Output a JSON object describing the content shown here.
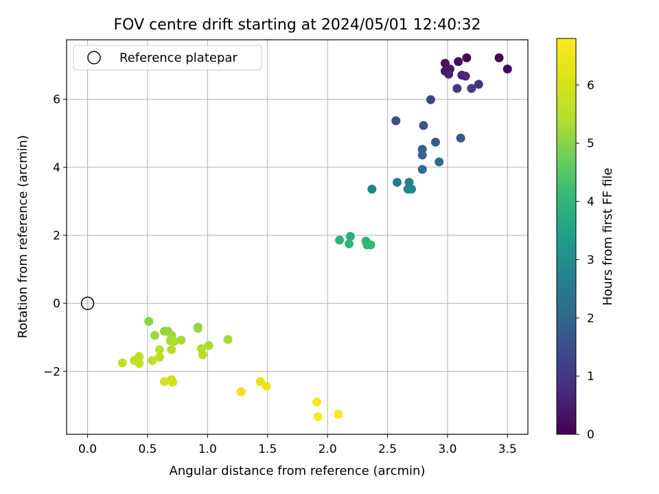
{
  "chart_data": {
    "type": "scatter",
    "title": "FOV centre drift starting at 2024/05/01 12:40:32",
    "xlabel": "Angular distance from reference (arcmin)",
    "ylabel": "Rotation from reference (arcmin)",
    "xlim": [
      -0.175,
      3.67
    ],
    "ylim": [
      -3.85,
      7.75
    ],
    "xticks": [
      0.0,
      0.5,
      1.0,
      1.5,
      2.0,
      2.5,
      3.0,
      3.5
    ],
    "xtick_labels": [
      "0.0",
      "0.5",
      "1.0",
      "1.5",
      "2.0",
      "2.5",
      "3.0",
      "3.5"
    ],
    "yticks": [
      -2,
      0,
      2,
      4,
      6
    ],
    "ytick_labels": [
      "−2",
      "0",
      "2",
      "4",
      "6"
    ],
    "grid": true,
    "legend": {
      "position": "top-left",
      "entries": [
        "Reference platepar"
      ]
    },
    "reference_point": {
      "x": 0.0,
      "y": 0.0,
      "label": "Reference platepar"
    },
    "colorbar": {
      "label": "Hours from first FF file",
      "colormap": "viridis",
      "range": [
        0,
        6.8
      ],
      "ticks": [
        0,
        1,
        2,
        3,
        4,
        5,
        6
      ],
      "tick_labels": [
        "0",
        "1",
        "2",
        "3",
        "4",
        "5",
        "6"
      ]
    },
    "points": [
      {
        "x": 3.43,
        "y": 7.22,
        "c": 0.05
      },
      {
        "x": 3.16,
        "y": 7.22,
        "c": 0.1
      },
      {
        "x": 3.5,
        "y": 6.89,
        "c": 0.15
      },
      {
        "x": 3.09,
        "y": 7.11,
        "c": 0.2
      },
      {
        "x": 2.98,
        "y": 7.06,
        "c": 0.3
      },
      {
        "x": 2.98,
        "y": 6.83,
        "c": 0.4
      },
      {
        "x": 3.02,
        "y": 6.89,
        "c": 0.45
      },
      {
        "x": 3.01,
        "y": 6.74,
        "c": 0.55
      },
      {
        "x": 3.12,
        "y": 6.71,
        "c": 0.6
      },
      {
        "x": 3.15,
        "y": 6.68,
        "c": 0.75
      },
      {
        "x": 3.26,
        "y": 6.44,
        "c": 0.95
      },
      {
        "x": 3.08,
        "y": 6.32,
        "c": 1.0
      },
      {
        "x": 3.2,
        "y": 6.32,
        "c": 1.1
      },
      {
        "x": 2.86,
        "y": 5.99,
        "c": 1.3
      },
      {
        "x": 2.57,
        "y": 5.37,
        "c": 1.55
      },
      {
        "x": 2.8,
        "y": 5.23,
        "c": 1.6
      },
      {
        "x": 3.11,
        "y": 4.86,
        "c": 1.7
      },
      {
        "x": 2.9,
        "y": 4.74,
        "c": 1.8
      },
      {
        "x": 2.79,
        "y": 4.53,
        "c": 1.9
      },
      {
        "x": 2.79,
        "y": 4.36,
        "c": 2.0
      },
      {
        "x": 2.93,
        "y": 4.16,
        "c": 2.1
      },
      {
        "x": 2.79,
        "y": 3.94,
        "c": 2.2
      },
      {
        "x": 2.58,
        "y": 3.56,
        "c": 2.5
      },
      {
        "x": 2.68,
        "y": 3.56,
        "c": 2.6
      },
      {
        "x": 2.37,
        "y": 3.36,
        "c": 2.7
      },
      {
        "x": 2.67,
        "y": 3.36,
        "c": 2.75
      },
      {
        "x": 2.7,
        "y": 3.36,
        "c": 2.8
      },
      {
        "x": 2.19,
        "y": 1.97,
        "c": 3.8
      },
      {
        "x": 2.1,
        "y": 1.86,
        "c": 3.9
      },
      {
        "x": 2.32,
        "y": 1.83,
        "c": 3.9
      },
      {
        "x": 2.18,
        "y": 1.75,
        "c": 4.0
      },
      {
        "x": 2.33,
        "y": 1.72,
        "c": 4.0
      },
      {
        "x": 2.36,
        "y": 1.72,
        "c": 4.05
      },
      {
        "x": 0.51,
        "y": -0.53,
        "c": 5.0
      },
      {
        "x": 0.92,
        "y": -0.7,
        "c": 5.05
      },
      {
        "x": 0.92,
        "y": -0.73,
        "c": 5.1
      },
      {
        "x": 0.64,
        "y": -0.82,
        "c": 5.1
      },
      {
        "x": 0.67,
        "y": -0.82,
        "c": 5.15
      },
      {
        "x": 0.56,
        "y": -0.94,
        "c": 5.2
      },
      {
        "x": 0.7,
        "y": -0.94,
        "c": 5.2
      },
      {
        "x": 1.17,
        "y": -1.06,
        "c": 5.25
      },
      {
        "x": 0.78,
        "y": -1.08,
        "c": 5.3
      },
      {
        "x": 0.69,
        "y": -1.1,
        "c": 5.3
      },
      {
        "x": 0.72,
        "y": -1.12,
        "c": 5.35
      },
      {
        "x": 1.01,
        "y": -1.24,
        "c": 5.35
      },
      {
        "x": 0.95,
        "y": -1.33,
        "c": 5.4
      },
      {
        "x": 0.6,
        "y": -1.36,
        "c": 5.45
      },
      {
        "x": 0.7,
        "y": -1.36,
        "c": 5.45
      },
      {
        "x": 0.96,
        "y": -1.51,
        "c": 5.5
      },
      {
        "x": 0.43,
        "y": -1.56,
        "c": 5.5
      },
      {
        "x": 0.6,
        "y": -1.58,
        "c": 5.55
      },
      {
        "x": 0.39,
        "y": -1.68,
        "c": 5.6
      },
      {
        "x": 0.54,
        "y": -1.68,
        "c": 5.6
      },
      {
        "x": 0.29,
        "y": -1.75,
        "c": 5.7
      },
      {
        "x": 0.43,
        "y": -1.77,
        "c": 5.7
      },
      {
        "x": 0.7,
        "y": -2.24,
        "c": 5.85
      },
      {
        "x": 0.64,
        "y": -2.3,
        "c": 5.9
      },
      {
        "x": 0.71,
        "y": -2.32,
        "c": 5.9
      },
      {
        "x": 1.44,
        "y": -2.3,
        "c": 6.3
      },
      {
        "x": 1.49,
        "y": -2.43,
        "c": 6.35
      },
      {
        "x": 1.28,
        "y": -2.6,
        "c": 6.4
      },
      {
        "x": 1.91,
        "y": -2.9,
        "c": 6.6
      },
      {
        "x": 1.92,
        "y": -3.33,
        "c": 6.7
      },
      {
        "x": 2.09,
        "y": -3.26,
        "c": 6.75
      }
    ]
  }
}
